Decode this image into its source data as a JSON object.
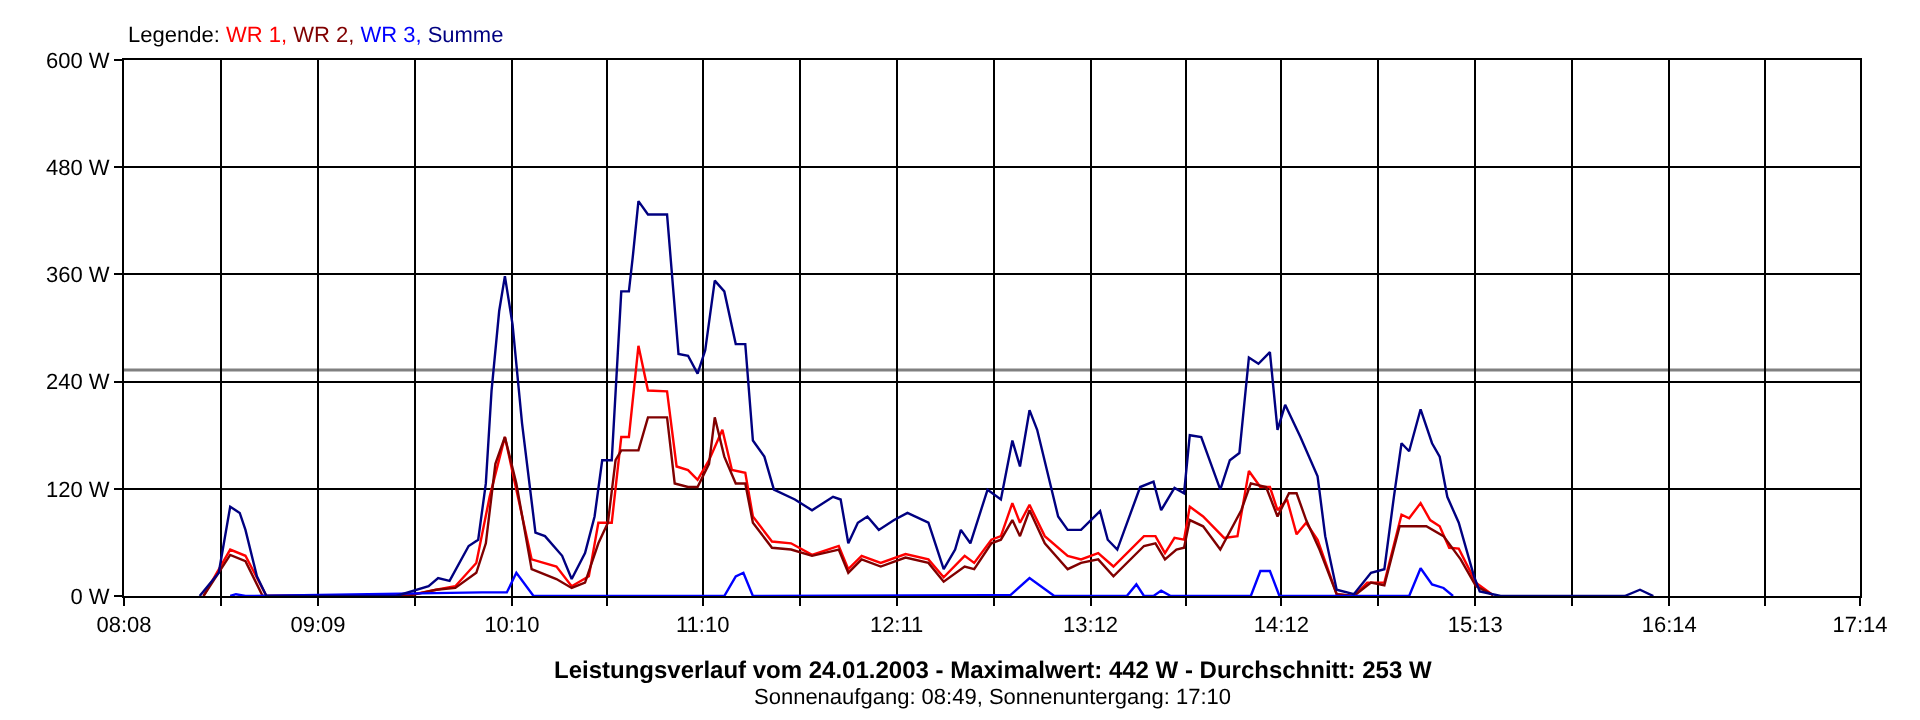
{
  "chart_data": {
    "type": "line",
    "title": "Leistungsverlauf vom 24.01.2003 - Maximalwert: 442 W - Durchschnitt: 253 W",
    "subtitle": "Sonnenaufgang: 08:49, Sonnenuntergang: 17:10",
    "legend_title": "Legende:",
    "legend": "top left",
    "grid": true,
    "marker": "none",
    "line_style": "solid",
    "xlim": [
      8.1333,
      17.2333
    ],
    "xticks": [
      {
        "value": 8.1333,
        "label": "08:08"
      },
      {
        "value": 8.6417,
        "label": null
      },
      {
        "value": 9.15,
        "label": "09:09"
      },
      {
        "value": 9.6583,
        "label": null
      },
      {
        "value": 10.1667,
        "label": "10:10"
      },
      {
        "value": 10.6667,
        "label": null
      },
      {
        "value": 11.1667,
        "label": "11:10"
      },
      {
        "value": 11.675,
        "label": null
      },
      {
        "value": 12.1833,
        "label": "12:11"
      },
      {
        "value": 12.6917,
        "label": null
      },
      {
        "value": 13.2,
        "label": "13:12"
      },
      {
        "value": 13.7,
        "label": null
      },
      {
        "value": 14.2,
        "label": "14:12"
      },
      {
        "value": 14.7083,
        "label": null
      },
      {
        "value": 15.2167,
        "label": "15:13"
      },
      {
        "value": 15.725,
        "label": null
      },
      {
        "value": 16.2333,
        "label": "16:14"
      },
      {
        "value": 16.7333,
        "label": null
      },
      {
        "value": 17.2333,
        "label": "17:14"
      }
    ],
    "ylim": [
      0,
      600
    ],
    "yticks": [
      {
        "value": 0,
        "label": "0 W"
      },
      {
        "value": 120,
        "label": "120 W"
      },
      {
        "value": 240,
        "label": "240 W"
      },
      {
        "value": 360,
        "label": "360 W"
      },
      {
        "value": 480,
        "label": "480 W"
      },
      {
        "value": 600,
        "label": "600 W"
      }
    ],
    "ref_lines": [
      {
        "axis": "y",
        "value": 253,
        "color": "#808080"
      }
    ],
    "series": [
      {
        "name": "WR 1,",
        "color": "#ff0000",
        "x": [
          8.55,
          8.69,
          8.77,
          8.88,
          9.63,
          9.77,
          9.87,
          9.98,
          10.05,
          10.13,
          10.19,
          10.27,
          10.4,
          10.48,
          10.57,
          10.62,
          10.69,
          10.74,
          10.78,
          10.83,
          10.88,
          10.98,
          11.03,
          11.09,
          11.14,
          11.2,
          11.27,
          11.32,
          11.39,
          11.43,
          11.53,
          11.63,
          11.74,
          11.88,
          11.93,
          12.0,
          12.1,
          12.23,
          12.35,
          12.43,
          12.54,
          12.59,
          12.68,
          12.73,
          12.79,
          12.83,
          12.88,
          12.96,
          13.08,
          13.15,
          13.24,
          13.32,
          13.48,
          13.54,
          13.59,
          13.64,
          13.69,
          13.72,
          13.79,
          13.9,
          13.97,
          14.03,
          14.09,
          14.14,
          14.18,
          14.23,
          14.28,
          14.33,
          14.39,
          14.49,
          14.58,
          14.65,
          14.74,
          14.83,
          14.87,
          14.93,
          14.98,
          15.03,
          15.08,
          15.13,
          15.22,
          15.31
        ],
        "values": [
          0,
          52,
          45,
          0,
          1,
          7,
          11,
          37,
          111,
          178,
          119,
          41,
          33,
          11,
          22,
          82,
          82,
          178,
          178,
          280,
          230,
          229,
          145,
          141,
          130,
          152,
          186,
          141,
          138,
          89,
          61,
          59,
          46,
          56,
          30,
          45,
          37,
          47,
          41,
          21,
          45,
          37,
          63,
          67,
          104,
          82,
          102,
          67,
          45,
          41,
          48,
          33,
          67,
          67,
          48,
          65,
          63,
          100,
          89,
          65,
          67,
          140,
          122,
          122,
          96,
          108,
          69,
          82,
          63,
          2,
          0,
          15,
          15,
          91,
          87,
          104,
          85,
          78,
          54,
          53,
          15,
          1
        ]
      },
      {
        "name": "WR 2,",
        "color": "#800000",
        "x": [
          8.55,
          8.69,
          8.77,
          8.86,
          9.64,
          9.77,
          9.87,
          9.98,
          10.03,
          10.08,
          10.13,
          10.19,
          10.27,
          10.4,
          10.48,
          10.55,
          10.62,
          10.67,
          10.71,
          10.74,
          10.83,
          10.88,
          10.98,
          11.02,
          11.09,
          11.14,
          11.2,
          11.23,
          11.28,
          11.34,
          11.39,
          11.43,
          11.53,
          11.63,
          11.74,
          11.88,
          11.93,
          12.0,
          12.1,
          12.23,
          12.35,
          12.43,
          12.54,
          12.59,
          12.68,
          12.73,
          12.79,
          12.83,
          12.88,
          12.96,
          13.08,
          13.15,
          13.24,
          13.32,
          13.48,
          13.54,
          13.59,
          13.65,
          13.69,
          13.72,
          13.79,
          13.88,
          13.99,
          14.04,
          14.12,
          14.18,
          14.24,
          14.28,
          14.33,
          14.4,
          14.49,
          14.58,
          14.67,
          14.74,
          14.82,
          14.87,
          14.96,
          15.05,
          15.14,
          15.22,
          15.31
        ],
        "values": [
          0,
          46,
          39,
          0,
          1,
          7,
          9,
          26,
          59,
          148,
          178,
          126,
          30,
          19,
          9,
          15,
          59,
          82,
          152,
          163,
          163,
          200,
          200,
          126,
          122,
          122,
          148,
          200,
          156,
          126,
          126,
          82,
          54,
          52,
          45,
          52,
          26,
          41,
          33,
          43,
          37,
          16,
          33,
          30,
          59,
          63,
          85,
          67,
          96,
          59,
          30,
          37,
          41,
          22,
          56,
          59,
          41,
          52,
          54,
          85,
          78,
          52,
          96,
          126,
          122,
          89,
          115,
          115,
          85,
          52,
          2,
          0,
          15,
          12,
          78,
          78,
          78,
          67,
          41,
          11,
          1
        ]
      },
      {
        "name": "WR 3,",
        "color": "#0000ff",
        "x": [
          8.69,
          8.72,
          8.77,
          10.01,
          10.14,
          10.19,
          10.28,
          11.28,
          11.34,
          11.38,
          11.43,
          12.66,
          12.78,
          12.88,
          13.01,
          13.39,
          13.44,
          13.48,
          13.53,
          13.57,
          13.62,
          14.04,
          14.09,
          14.14,
          14.19,
          14.87,
          14.93,
          14.99,
          15.05,
          15.1
        ],
        "values": [
          0,
          2,
          0,
          4,
          4,
          26,
          0,
          0,
          22,
          26,
          0,
          1,
          1,
          20,
          0,
          0,
          13,
          0,
          0,
          6,
          0,
          0,
          28,
          28,
          0,
          0,
          31,
          13,
          9,
          0
        ]
      },
      {
        "name": "Summe",
        "color": "#000080",
        "x": [
          8.53,
          8.63,
          8.69,
          8.74,
          8.77,
          8.83,
          8.88,
          9.56,
          9.73,
          9.78,
          9.84,
          9.94,
          9.99,
          10.03,
          10.06,
          10.1,
          10.13,
          10.17,
          10.22,
          10.29,
          10.34,
          10.43,
          10.48,
          10.55,
          10.6,
          10.64,
          10.69,
          10.74,
          10.78,
          10.8,
          10.83,
          10.88,
          10.98,
          11.04,
          11.09,
          11.14,
          11.18,
          11.23,
          11.28,
          11.34,
          11.39,
          11.43,
          11.49,
          11.54,
          11.65,
          11.74,
          11.85,
          11.89,
          11.93,
          11.98,
          12.03,
          12.09,
          12.17,
          12.24,
          12.35,
          12.43,
          12.49,
          12.52,
          12.57,
          12.66,
          12.73,
          12.79,
          12.83,
          12.88,
          12.92,
          13.03,
          13.08,
          13.15,
          13.25,
          13.29,
          13.34,
          13.46,
          13.53,
          13.57,
          13.64,
          13.69,
          13.72,
          13.78,
          13.88,
          13.93,
          13.98,
          14.03,
          14.08,
          14.14,
          14.18,
          14.22,
          14.3,
          14.39,
          14.43,
          14.49,
          14.58,
          14.67,
          14.74,
          14.79,
          14.83,
          14.87,
          14.93,
          14.99,
          15.03,
          15.07,
          15.13,
          15.21,
          15.24,
          15.35,
          16.0,
          16.08,
          16.15
        ],
        "values": [
          0,
          26,
          100,
          93,
          74,
          22,
          0,
          0,
          11,
          20,
          17,
          56,
          63,
          126,
          230,
          319,
          358,
          304,
          193,
          71,
          67,
          45,
          19,
          48,
          89,
          152,
          152,
          341,
          341,
          379,
          442,
          427,
          427,
          271,
          269,
          249,
          275,
          353,
          341,
          282,
          282,
          174,
          156,
          119,
          108,
          96,
          111,
          108,
          59,
          82,
          89,
          74,
          85,
          93,
          82,
          30,
          52,
          74,
          59,
          119,
          108,
          174,
          145,
          208,
          186,
          89,
          74,
          74,
          95,
          63,
          52,
          122,
          128,
          96,
          121,
          115,
          180,
          178,
          119,
          152,
          160,
          267,
          260,
          273,
          186,
          214,
          178,
          134,
          67,
          7,
          2,
          26,
          30,
          111,
          171,
          162,
          209,
          171,
          156,
          111,
          82,
          22,
          5,
          0,
          0,
          7,
          0
        ]
      }
    ]
  }
}
